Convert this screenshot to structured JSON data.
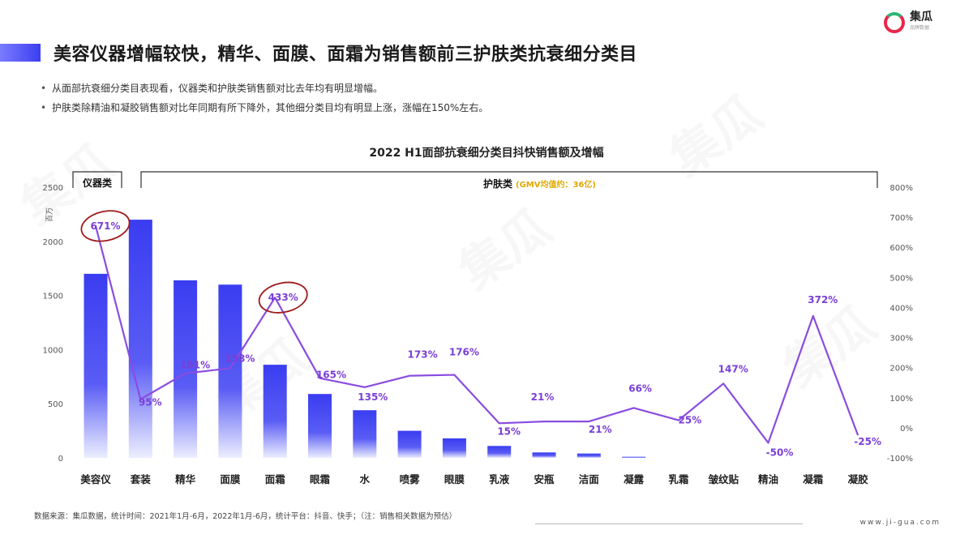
{
  "header": {
    "title": "美容仪器增幅较快，精华、面膜、面霜为销售额前三护肤类抗衰细分类目",
    "bullets": [
      "从面部抗衰细分类目表现看，仪器类和护肤类销售额对比去年均有明显增幅。",
      "护肤类除精油和凝胶销售额对比年同期有所下降外，其他细分类目均有明显上涨，涨幅在150%左右。"
    ]
  },
  "logo": {
    "name": "集瓜",
    "tagline": "品牌数据"
  },
  "watermark": "集瓜",
  "chart_data": {
    "type": "bar+line",
    "title": "2022 H1面部抗衰细分类目抖快销售额及增幅",
    "ylabel": "百万",
    "ylim": [
      0,
      2500
    ],
    "yticks": [
      0,
      500,
      1000,
      1500,
      2000,
      2500
    ],
    "y2lim": [
      -100,
      800
    ],
    "y2ticks": [
      "-100%",
      "0%",
      "100%",
      "200%",
      "300%",
      "400%",
      "500%",
      "600%",
      "700%",
      "800%"
    ],
    "categories": [
      "美容仪",
      "套装",
      "精华",
      "面膜",
      "面霜",
      "眼霜",
      "水",
      "喷雾",
      "眼膜",
      "乳液",
      "安瓶",
      "洁面",
      "凝露",
      "乳霜",
      "皱纹贴",
      "精油",
      "凝霜",
      "凝胶"
    ],
    "bar_values": [
      1700,
      2200,
      1640,
      1600,
      860,
      590,
      440,
      250,
      180,
      110,
      50,
      40,
      10,
      0,
      0,
      0,
      0,
      0
    ],
    "growth_values": [
      671,
      95,
      181,
      198,
      433,
      165,
      135,
      173,
      176,
      15,
      21,
      21,
      66,
      25,
      147,
      -50,
      372,
      -25
    ],
    "growth_labels": [
      "671%",
      "95%",
      "181%",
      "198%",
      "433%",
      "165%",
      "135%",
      "173%",
      "176%",
      "15%",
      "21%",
      "21%",
      "66%",
      "25%",
      "147%",
      "-50%",
      "372%",
      "-25%"
    ],
    "group_instrument": "仪器类",
    "group_skincare": "护肤类",
    "group_skincare_note": "(GMV均值约：36亿)",
    "highlighted": [
      "671%",
      "433%"
    ],
    "colors": {
      "bar_top": "#3a3df0",
      "bar_bottom": "#e8e8ff",
      "line": "#8a4ce0",
      "label": "#7a3fd6",
      "circle": "#a01a1a",
      "note": "#e0a800"
    }
  },
  "footer": {
    "source": "数据来源：集瓜数据，统计时间：2021年1月-6月，2022年1月-6月，统计平台：抖音、快手；（注：销售相关数据为预估）",
    "url": "www.ji-gua.com"
  }
}
